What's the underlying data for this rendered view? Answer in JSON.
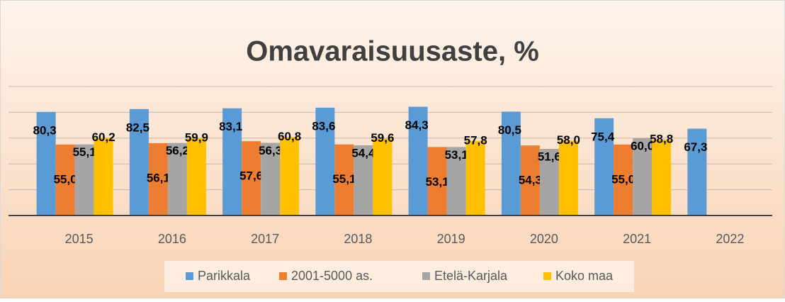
{
  "chart_data": {
    "type": "bar",
    "title": "Omavaraisuusaste, %",
    "categories": [
      "2015",
      "2016",
      "2017",
      "2018",
      "2019",
      "2020",
      "2021",
      "2022"
    ],
    "series": [
      {
        "name": "Parikkala",
        "color": "#5b9bd5",
        "values": [
          80.3,
          82.5,
          83.1,
          83.6,
          84.3,
          80.5,
          75.4,
          67.3
        ],
        "value_labels": [
          "80,3",
          "82,5",
          "83,1",
          "83,6",
          "84,3",
          "80,5",
          "75,4",
          "67,3"
        ]
      },
      {
        "name": "2001-5000 as.",
        "color": "#ed7d31",
        "values": [
          55.0,
          56.1,
          57.6,
          55.1,
          53.1,
          54.3,
          55.0,
          null
        ],
        "value_labels": [
          "55,0",
          "56,1",
          "57,6",
          "55,1",
          "53,1",
          "54,3",
          "55,0",
          null
        ]
      },
      {
        "name": "Etelä-Karjala",
        "color": "#a5a5a5",
        "values": [
          55.1,
          56.2,
          56.3,
          54.4,
          53.1,
          51.6,
          60.0,
          null
        ],
        "value_labels": [
          "55,1",
          "56,2",
          "56,3",
          "54,4",
          "53,1",
          "51,6",
          "60,0",
          null
        ]
      },
      {
        "name": "Koko maa",
        "color": "#ffc000",
        "values": [
          60.2,
          59.9,
          60.8,
          59.6,
          57.8,
          58.0,
          58.8,
          null
        ],
        "value_labels": [
          "60,2",
          "59,9",
          "60,8",
          "59,6",
          "57,8",
          "58,0",
          "58,8",
          null
        ]
      }
    ],
    "ylim": [
      0,
      100
    ],
    "yticks": [
      0,
      20,
      40,
      60,
      80,
      100
    ],
    "grid": true,
    "legend": "bottom"
  }
}
